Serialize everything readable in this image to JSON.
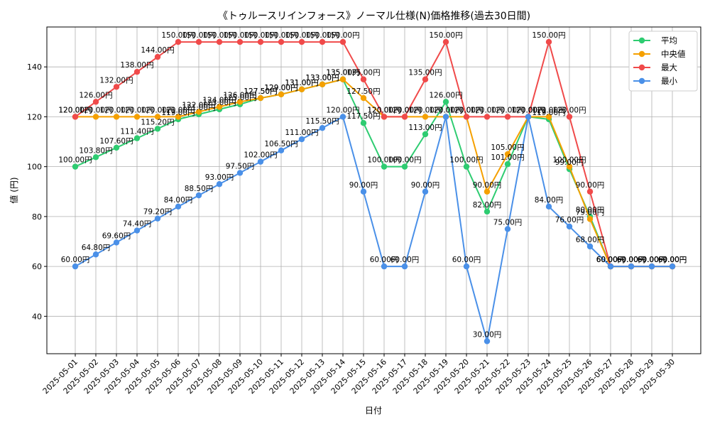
{
  "chart_data": {
    "type": "line",
    "title": "《トゥルースリインフォース》ノーマル仕様(N)価格推移(過去30日間)",
    "xlabel": "日付",
    "ylabel": "値 (円)",
    "ylim": [
      25,
      156
    ],
    "yticks": [
      40,
      60,
      80,
      100,
      120,
      140
    ],
    "grid": true,
    "legend_position": "top-right",
    "label_suffix": "円",
    "categories": [
      "2025-05-01",
      "2025-05-02",
      "2025-05-03",
      "2025-05-04",
      "2025-05-05",
      "2025-05-06",
      "2025-05-07",
      "2025-05-08",
      "2025-05-09",
      "2025-05-10",
      "2025-05-11",
      "2025-05-12",
      "2025-05-13",
      "2025-05-14",
      "2025-05-15",
      "2025-05-16",
      "2025-05-17",
      "2025-05-18",
      "2025-05-19",
      "2025-05-20",
      "2025-05-21",
      "2025-05-22",
      "2025-05-23",
      "2025-05-24",
      "2025-05-25",
      "2025-05-26",
      "2025-05-27",
      "2025-05-28",
      "2025-05-29",
      "2025-05-30"
    ],
    "series": [
      {
        "name": "平均",
        "color": "#2ecc71",
        "values": [
          100.0,
          103.8,
          107.6,
          111.4,
          115.2,
          119.0,
          121.0,
          123.0,
          125.0,
          127.5,
          129.0,
          131.0,
          133.0,
          135.0,
          117.5,
          100.0,
          100.0,
          113.0,
          126.0,
          100.0,
          82.0,
          101.0,
          120.0,
          119.0,
          99.0,
          80.0,
          60.0,
          60.0,
          60.0,
          60.0
        ]
      },
      {
        "name": "中央値",
        "color": "#f5a000",
        "values": [
          120.0,
          120.0,
          120.0,
          120.0,
          120.0,
          120.0,
          122.0,
          124.0,
          126.0,
          127.5,
          129.0,
          131.0,
          133.0,
          135.0,
          127.5,
          120.0,
          120.0,
          120.0,
          120.0,
          120.0,
          90.0,
          105.0,
          120.0,
          120.0,
          100.0,
          79.0,
          60.0,
          60.0,
          60.0,
          60.0
        ]
      },
      {
        "name": "最大",
        "color": "#f04a4a",
        "values": [
          120.0,
          126.0,
          132.0,
          138.0,
          144.0,
          150.0,
          150.0,
          150.0,
          150.0,
          150.0,
          150.0,
          150.0,
          150.0,
          150.0,
          135.0,
          120.0,
          120.0,
          135.0,
          150.0,
          120.0,
          120.0,
          120.0,
          120.0,
          150.0,
          120.0,
          90.0,
          60.0,
          60.0,
          60.0,
          60.0
        ]
      },
      {
        "name": "最小",
        "color": "#4a90e8",
        "values": [
          60.0,
          64.8,
          69.6,
          74.4,
          79.2,
          84.0,
          88.5,
          93.0,
          97.5,
          102.0,
          106.5,
          111.0,
          115.5,
          120.0,
          90.0,
          60.0,
          60.0,
          90.0,
          120.0,
          60.0,
          30.0,
          75.0,
          120.0,
          84.0,
          76.0,
          68.0,
          60.0,
          60.0,
          60.0,
          60.0
        ]
      }
    ]
  }
}
